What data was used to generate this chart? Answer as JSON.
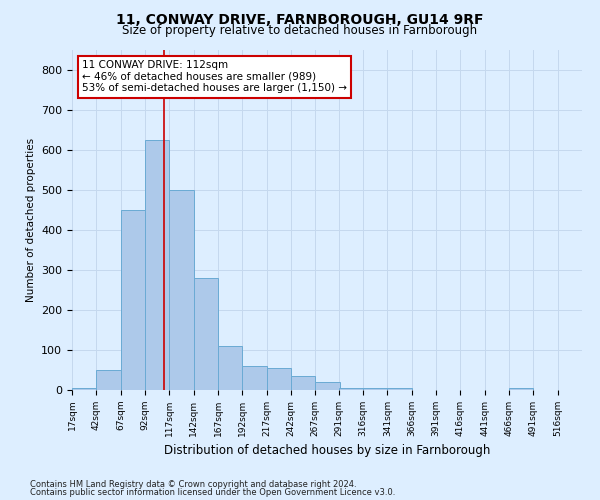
{
  "title": "11, CONWAY DRIVE, FARNBOROUGH, GU14 9RF",
  "subtitle": "Size of property relative to detached houses in Farnborough",
  "xlabel": "Distribution of detached houses by size in Farnborough",
  "ylabel": "Number of detached properties",
  "footnote1": "Contains HM Land Registry data © Crown copyright and database right 2024.",
  "footnote2": "Contains public sector information licensed under the Open Government Licence v3.0.",
  "annotation_title": "11 CONWAY DRIVE: 112sqm",
  "annotation_line1": "← 46% of detached houses are smaller (989)",
  "annotation_line2": "53% of semi-detached houses are larger (1,150) →",
  "property_size": 112,
  "bins": [
    17,
    42,
    67,
    92,
    117,
    142,
    167,
    192,
    217,
    242,
    267,
    291,
    316,
    341,
    366,
    391,
    416,
    441,
    466,
    491,
    516
  ],
  "bar_values": [
    5,
    50,
    450,
    625,
    500,
    280,
    110,
    60,
    55,
    35,
    20,
    5,
    5,
    5,
    0,
    0,
    0,
    0,
    5,
    0,
    0
  ],
  "bar_color": "#adc9ea",
  "bar_edge_color": "#6aaad4",
  "vline_color": "#cc0000",
  "vline_x": 112,
  "ylim": [
    0,
    850
  ],
  "yticks": [
    0,
    100,
    200,
    300,
    400,
    500,
    600,
    700,
    800
  ],
  "grid_color": "#c5d8ee",
  "bg_color": "#ddeeff",
  "annotation_box_color": "#ffffff",
  "annotation_box_edge": "#cc0000"
}
